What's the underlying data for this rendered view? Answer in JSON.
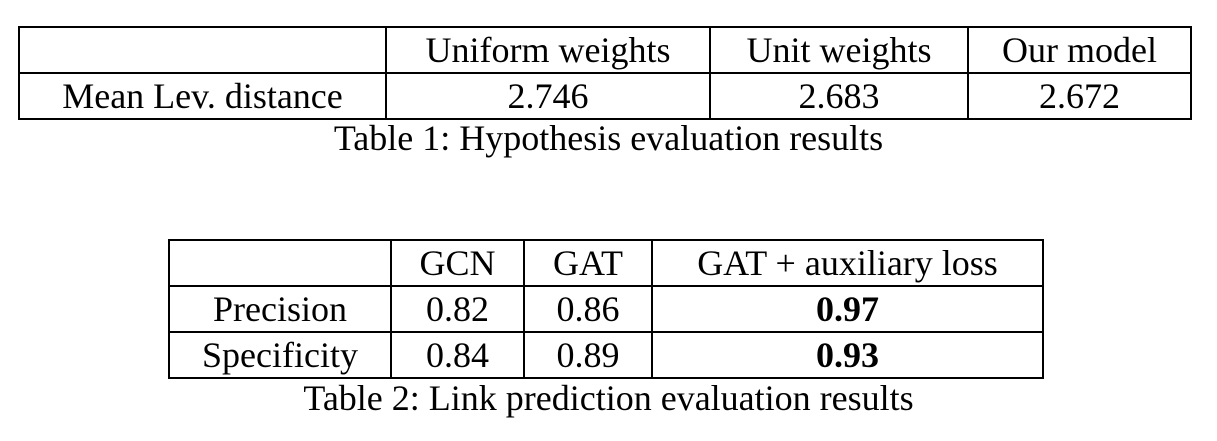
{
  "table1": {
    "header": [
      "",
      "Uniform weights",
      "Unit weights",
      "Our model"
    ],
    "rows": [
      [
        "Mean Lev. distance",
        "2.746",
        "2.683",
        "2.672"
      ]
    ],
    "caption": "Table 1: Hypothesis evaluation results"
  },
  "table2": {
    "header": [
      "",
      "GCN",
      "GAT",
      "GAT + auxiliary loss"
    ],
    "rows": [
      [
        "Precision",
        "0.82",
        "0.86",
        "0.97"
      ],
      [
        "Specificity",
        "0.84",
        "0.89",
        "0.93"
      ]
    ],
    "caption": "Table 2: Link prediction evaluation results"
  }
}
